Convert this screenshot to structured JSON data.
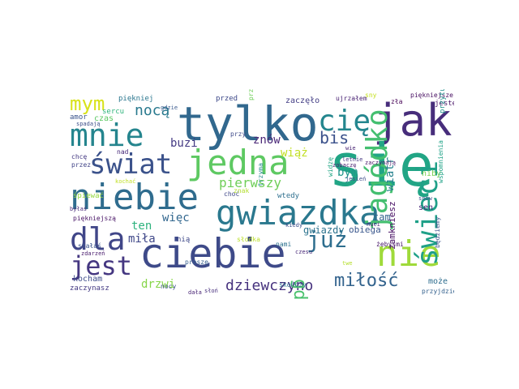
{
  "wordcloud": {
    "words": [
      {
        "text": "tylko",
        "color": "#31688e"
      },
      {
        "text": "jak",
        "color": "#472d7b"
      },
      {
        "text": "się",
        "color": "#21a585"
      },
      {
        "text": "ciebie",
        "color": "#3e4a89"
      },
      {
        "text": "niebie",
        "color": "#2f6c8e"
      },
      {
        "text": "gwiazdka",
        "color": "#2a788e"
      },
      {
        "text": "jedna",
        "color": "#5ec962"
      },
      {
        "text": "mnie",
        "color": "#25858e"
      },
      {
        "text": "świat",
        "color": "#3b528b"
      },
      {
        "text": "dla",
        "color": "#404688"
      },
      {
        "text": "jest",
        "color": "#453781"
      },
      {
        "text": "nie",
        "color": "#9fda3a"
      },
      {
        "text": "cię",
        "color": "#24868e"
      },
      {
        "text": "jagódko",
        "color": "#44bf70"
      },
      {
        "text": "świeci",
        "color": "#1fa088"
      },
      {
        "text": "już",
        "color": "#2e6e8e"
      },
      {
        "text": "mym",
        "color": "#d8e219"
      },
      {
        "text": "nocą",
        "color": "#29798e"
      },
      {
        "text": "bis",
        "color": "#3b518b"
      },
      {
        "text": "miłość",
        "color": "#33638d"
      },
      {
        "text": "dziewczyno",
        "color": "#46327e"
      },
      {
        "text": "gdy",
        "color": "#4ac16d"
      },
      {
        "text": "pierwszy",
        "color": "#6ece58"
      },
      {
        "text": "znów",
        "color": "#482576"
      },
      {
        "text": "wiatr",
        "color": "#26828e"
      },
      {
        "text": "wiąż",
        "color": "#c2df23"
      },
      {
        "text": "bym",
        "color": "#1f968b"
      },
      {
        "text": "buzi",
        "color": "#443a83"
      },
      {
        "text": "ten",
        "color": "#2db27d"
      },
      {
        "text": "więc",
        "color": "#31668e"
      },
      {
        "text": "miła",
        "color": "#3f4788"
      },
      {
        "text": "drzwi",
        "color": "#86d549"
      },
      {
        "text": "kocham",
        "color": "#3e4c8a"
      },
      {
        "text": "tam",
        "color": "#32658e"
      },
      {
        "text": "gwiazdy",
        "color": "#2c738e"
      },
      {
        "text": "obiega",
        "color": "#39568c"
      },
      {
        "text": "zamkniesz",
        "color": "#471063"
      },
      {
        "text": "sen",
        "color": "#482878"
      },
      {
        "text": "może",
        "color": "#2e6d8e"
      },
      {
        "text": "niby",
        "color": "#7ad151"
      },
      {
        "text": "czas",
        "color": "#5cc863"
      },
      {
        "text": "amor",
        "color": "#3a548c"
      },
      {
        "text": "sercu",
        "color": "#2fb47c"
      },
      {
        "text": "przed",
        "color": "#3e4989"
      },
      {
        "text": "zaczęło",
        "color": "#433e85"
      },
      {
        "text": "piękniej",
        "color": "#2a768e"
      },
      {
        "text": "ujrzałem",
        "color": "#482173"
      },
      {
        "text": "piękniejsze",
        "color": "#470e61"
      },
      {
        "text": "spadają",
        "color": "#3d4e8a"
      },
      {
        "text": "jesteś",
        "color": "#481467"
      },
      {
        "text": "przytul",
        "color": "#21918c"
      },
      {
        "text": "chcę",
        "color": "#443983"
      },
      {
        "text": "przez",
        "color": "#404387"
      },
      {
        "text": "nad",
        "color": "#472a7a"
      },
      {
        "text": "śpiewać",
        "color": "#95d840"
      },
      {
        "text": "kochać",
        "color": "#c0df25"
      },
      {
        "text": "byłaś",
        "color": "#482979"
      },
      {
        "text": "piękniejszą",
        "color": "#471365"
      },
      {
        "text": "stałaś",
        "color": "#3a538b"
      },
      {
        "text": "zdarzeń",
        "color": "#481b6d"
      },
      {
        "text": "zaczynasz",
        "color": "#443a83"
      },
      {
        "text": "nią",
        "color": "#3f4889"
      },
      {
        "text": "proszę",
        "color": "#355e8d"
      },
      {
        "text": "słodka",
        "color": "#bade28"
      },
      {
        "text": "nocy",
        "color": "#3c508b"
      },
      {
        "text": "dała",
        "color": "#482475"
      },
      {
        "text": "słoń",
        "color": "#472f7d"
      },
      {
        "text": "skończy",
        "color": "#2d708e"
      },
      {
        "text": "nami",
        "color": "#2c718e"
      },
      {
        "text": "zobaczę",
        "color": "#482071"
      },
      {
        "text": "wtedy",
        "color": "#2e6f8e"
      },
      {
        "text": "przyjdzie",
        "color": "#34618d"
      },
      {
        "text": "żebyśmi",
        "color": "#48186a"
      },
      {
        "text": "zła",
        "color": "#440154"
      },
      {
        "text": "sny",
        "color": "#c5e021"
      },
      {
        "text": "przy",
        "color": "#3e4a89"
      },
      {
        "text": "gdzie",
        "color": "#38588c"
      },
      {
        "text": "choć",
        "color": "#3f4889"
      },
      {
        "text": "znak",
        "color": "#b2dd2d"
      },
      {
        "text": "trzyma",
        "color": "#238a8d"
      },
      {
        "text": "widzę",
        "color": "#21a685"
      },
      {
        "text": "letnie",
        "color": "#453581"
      },
      {
        "text": "wie",
        "color": "#482575"
      },
      {
        "text": "jesień",
        "color": "#3e4c8a"
      },
      {
        "text": "snów",
        "color": "#3d4d8a"
      },
      {
        "text": "twe",
        "color": "#b5de2b"
      },
      {
        "text": "wspomnienia",
        "color": "#1fa287"
      },
      {
        "text": "będziemy",
        "color": "#3b528b"
      },
      {
        "text": "zaczynają",
        "color": "#481769"
      },
      {
        "text": "kiedy",
        "color": "#3c4f8a"
      },
      {
        "text": "przeżyć",
        "color": "#6ece58"
      },
      {
        "text": "nuci",
        "color": "#482576"
      },
      {
        "text": "czesu",
        "color": "#482878"
      }
    ]
  }
}
